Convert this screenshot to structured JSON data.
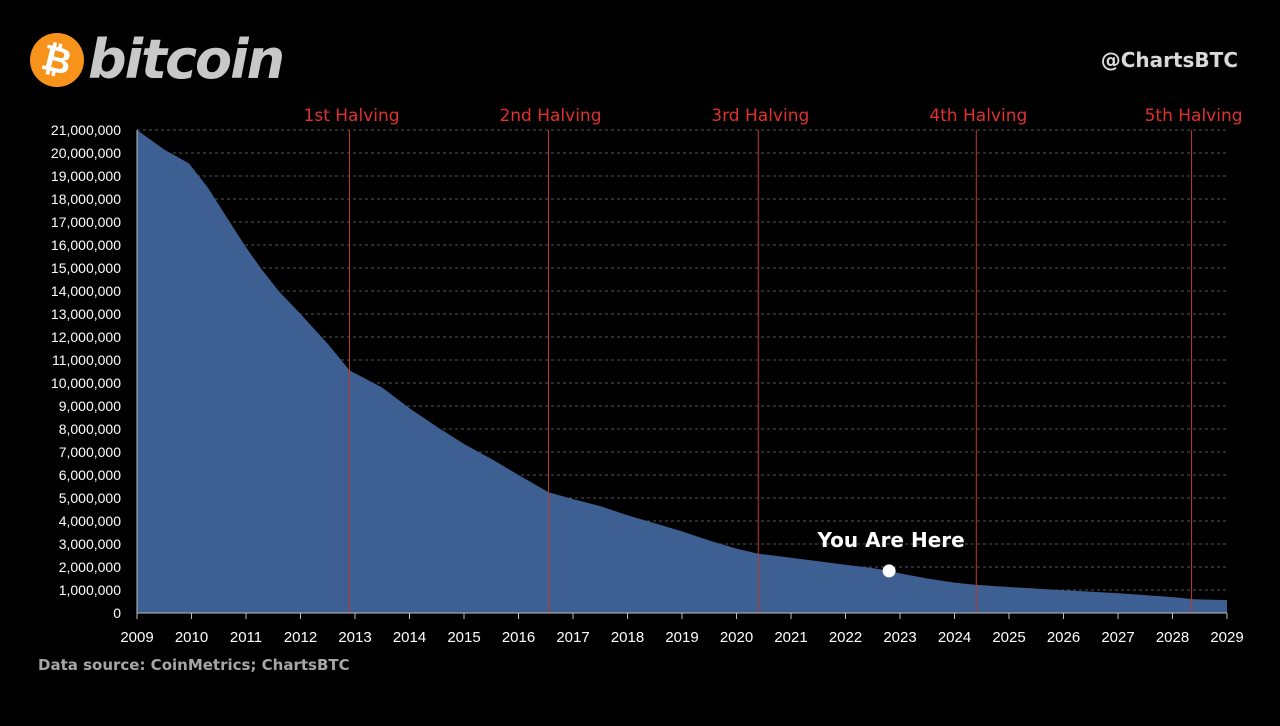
{
  "header": {
    "logo_symbol": "₿",
    "logo_text": "bitcoin",
    "handle": "@ChartsBTC"
  },
  "footer": {
    "source": "Data source:  CoinMetrics; ChartsBTC"
  },
  "colors": {
    "background": "#000000",
    "area_fill": "#3d5f91",
    "halving_line": "#c0392b",
    "halving_label": "#e03030",
    "grid": "#555555",
    "axis_text": "#ffffff",
    "logo_orange": "#f7931a"
  },
  "chart_data": {
    "type": "area",
    "title": "",
    "xlabel": "",
    "ylabel": "",
    "xlim": [
      2009,
      2029
    ],
    "ylim": [
      0,
      21000000
    ],
    "x_ticks": [
      "2009",
      "2010",
      "2011",
      "2012",
      "2013",
      "2014",
      "2015",
      "2016",
      "2017",
      "2018",
      "2019",
      "2020",
      "2021",
      "2022",
      "2023",
      "2024",
      "2025",
      "2026",
      "2027",
      "2028",
      "2029"
    ],
    "y_ticks": [
      "0",
      "1,000,000",
      "2,000,000",
      "3,000,000",
      "4,000,000",
      "5,000,000",
      "6,000,000",
      "7,000,000",
      "8,000,000",
      "9,000,000",
      "10,000,000",
      "11,000,000",
      "12,000,000",
      "13,000,000",
      "14,000,000",
      "15,000,000",
      "16,000,000",
      "17,000,000",
      "18,000,000",
      "19,000,000",
      "20,000,000",
      "21,000,000"
    ],
    "grid": "horizontal dashed",
    "series": [
      {
        "points": [
          [
            2009.0,
            21000000
          ],
          [
            2009.5,
            20150000
          ],
          [
            2009.95,
            19550000
          ],
          [
            2010.3,
            18500000
          ],
          [
            2010.7,
            17000000
          ],
          [
            2011.0,
            15900000
          ],
          [
            2011.3,
            14900000
          ],
          [
            2011.6,
            14000000
          ],
          [
            2012.0,
            13000000
          ],
          [
            2012.5,
            11700000
          ],
          [
            2012.9,
            10550000
          ],
          [
            2013.5,
            9800000
          ],
          [
            2014.0,
            8900000
          ],
          [
            2014.5,
            8100000
          ],
          [
            2015.0,
            7350000
          ],
          [
            2015.5,
            6700000
          ],
          [
            2016.0,
            6000000
          ],
          [
            2016.55,
            5250000
          ],
          [
            2017.0,
            4950000
          ],
          [
            2017.5,
            4650000
          ],
          [
            2018.0,
            4250000
          ],
          [
            2018.5,
            3900000
          ],
          [
            2019.0,
            3550000
          ],
          [
            2019.5,
            3150000
          ],
          [
            2020.0,
            2800000
          ],
          [
            2020.4,
            2580000
          ],
          [
            2021.0,
            2400000
          ],
          [
            2021.5,
            2250000
          ],
          [
            2022.0,
            2100000
          ],
          [
            2022.5,
            1950000
          ],
          [
            2022.8,
            1830000
          ],
          [
            2023.0,
            1720000
          ],
          [
            2023.5,
            1500000
          ],
          [
            2024.0,
            1320000
          ],
          [
            2024.4,
            1220000
          ],
          [
            2025.0,
            1130000
          ],
          [
            2025.5,
            1060000
          ],
          [
            2026.0,
            990000
          ],
          [
            2026.5,
            930000
          ],
          [
            2027.0,
            860000
          ],
          [
            2027.5,
            780000
          ],
          [
            2028.0,
            690000
          ],
          [
            2028.4,
            600000
          ],
          [
            2029.0,
            560000
          ]
        ]
      }
    ],
    "halvings": [
      {
        "label": "1st Halving",
        "x": 2012.9
      },
      {
        "label": "2nd Halving",
        "x": 2016.55
      },
      {
        "label": "3rd Halving",
        "x": 2020.4
      },
      {
        "label": "4th Halving",
        "x": 2024.4
      },
      {
        "label": "5th Halving",
        "x": 2028.35
      }
    ],
    "marker": {
      "label": "You Are Here",
      "x": 2022.8,
      "y": 1830000
    }
  }
}
